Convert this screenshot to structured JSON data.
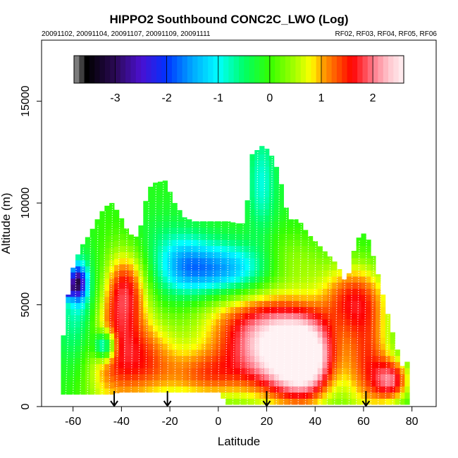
{
  "chart_data": {
    "type": "heatmap",
    "title": "HIPPO2 Southbound CONC2C_LWO (Log)",
    "subtitle_left": "20091102, 20091104, 20091107, 20091109, 20091111",
    "subtitle_right": "RF02, RF03, RF04, RF05, RF06",
    "xlabel": "Latitude",
    "ylabel": "Altitude (m)",
    "xlim": [
      -73,
      90
    ],
    "ylim": [
      0,
      18000
    ],
    "x_ticks": [
      -60,
      -40,
      -20,
      0,
      20,
      40,
      60,
      80
    ],
    "y_ticks": [
      0,
      5000,
      10000,
      15000
    ],
    "colorbar": {
      "range": [
        -3.8,
        2.6
      ],
      "ticks": [
        -3,
        -2,
        -1,
        0,
        1,
        2
      ],
      "stops": [
        {
          "v": -3.8,
          "c": "#9a9a9a"
        },
        {
          "v": -3.55,
          "c": "#000000"
        },
        {
          "v": -3.0,
          "c": "#2b0a55"
        },
        {
          "v": -2.5,
          "c": "#4b0fd0"
        },
        {
          "v": -2.0,
          "c": "#0033ff"
        },
        {
          "v": -1.5,
          "c": "#00a8ff"
        },
        {
          "v": -1.0,
          "c": "#00ffff"
        },
        {
          "v": -0.5,
          "c": "#00ff66"
        },
        {
          "v": 0.0,
          "c": "#33ff00"
        },
        {
          "v": 0.5,
          "c": "#aaff00"
        },
        {
          "v": 0.8,
          "c": "#ffff00"
        },
        {
          "v": 1.0,
          "c": "#ffaa00"
        },
        {
          "v": 1.3,
          "c": "#ff5500"
        },
        {
          "v": 1.6,
          "c": "#ff0000"
        },
        {
          "v": 2.0,
          "c": "#ff7a8a"
        },
        {
          "v": 2.3,
          "c": "#ffc4cc"
        },
        {
          "v": 2.6,
          "c": "#fff2f4"
        }
      ]
    },
    "flight_arrow_latitudes": [
      -43,
      -21,
      20,
      61
    ],
    "envelope": {
      "lat": [
        -65,
        -61,
        -57,
        -53,
        -50,
        -47,
        -44,
        -41,
        -37,
        -33,
        -29,
        -26,
        -22,
        -18,
        -14,
        -10,
        -5,
        0,
        4,
        8,
        11,
        14,
        18,
        21,
        25,
        29,
        33,
        37,
        41,
        45,
        49,
        53,
        57,
        61,
        65,
        69,
        73,
        76,
        78
      ],
      "bottom": [
        600,
        600,
        600,
        600,
        600,
        600,
        600,
        700,
        700,
        700,
        700,
        700,
        700,
        700,
        700,
        700,
        700,
        700,
        100,
        100,
        100,
        100,
        100,
        100,
        100,
        100,
        100,
        100,
        100,
        100,
        100,
        100,
        100,
        100,
        100,
        100,
        100,
        100,
        100
      ],
      "top": [
        2500,
        6500,
        7800,
        8500,
        9200,
        9800,
        10000,
        9500,
        8500,
        8300,
        10700,
        11000,
        11100,
        10000,
        9300,
        9100,
        9100,
        9100,
        9100,
        9000,
        9000,
        12400,
        12800,
        12600,
        11500,
        9200,
        9200,
        8500,
        8000,
        7500,
        7000,
        6000,
        8200,
        8600,
        7000,
        5000,
        3200,
        2000,
        2200
      ]
    },
    "field_features": [
      {
        "lat": -45,
        "alt": 3500,
        "value": 1.2,
        "sx": 9,
        "sy": 2800
      },
      {
        "lat": -38,
        "alt": 5800,
        "value": 1.1,
        "sx": 6,
        "sy": 1300
      },
      {
        "lat": -30,
        "alt": 2300,
        "value": 1.1,
        "sx": 10,
        "sy": 1500
      },
      {
        "lat": -28,
        "alt": 8400,
        "value": -0.3,
        "sx": 8,
        "sy": 900
      },
      {
        "lat": -57,
        "alt": 3900,
        "value": -0.9,
        "sx": 6,
        "sy": 1600
      },
      {
        "lat": -53,
        "alt": 6000,
        "value": -0.8,
        "sx": 8,
        "sy": 1500
      },
      {
        "lat": -58,
        "alt": 6100,
        "value": -2.6,
        "sx": 2.5,
        "sy": 600
      },
      {
        "lat": -63,
        "alt": 5800,
        "value": -3.2,
        "sx": 1.6,
        "sy": 300
      },
      {
        "lat": -47,
        "alt": 3000,
        "value": -2.1,
        "sx": 3,
        "sy": 500
      },
      {
        "lat": 2,
        "alt": 6700,
        "value": -1.7,
        "sx": 14,
        "sy": 900
      },
      {
        "lat": -15,
        "alt": 7100,
        "value": -1.0,
        "sx": 8,
        "sy": 1100
      },
      {
        "lat": 18,
        "alt": 11000,
        "value": -0.9,
        "sx": 4,
        "sy": 1700
      },
      {
        "lat": 8,
        "alt": 3800,
        "value": 1.1,
        "sx": 14,
        "sy": 1600
      },
      {
        "lat": -5,
        "alt": 1500,
        "value": 1.0,
        "sx": 12,
        "sy": 900
      },
      {
        "lat": 27,
        "alt": 2700,
        "value": 2.3,
        "sx": 12,
        "sy": 1700
      },
      {
        "lat": 37,
        "alt": 2300,
        "value": 1.8,
        "sx": 8,
        "sy": 1400
      },
      {
        "lat": 56,
        "alt": 5300,
        "value": 1.4,
        "sx": 10,
        "sy": 1300
      },
      {
        "lat": 62,
        "alt": 2000,
        "value": 1.3,
        "sx": 7,
        "sy": 1800
      },
      {
        "lat": 30,
        "alt": 7200,
        "value": 0.4,
        "sx": 10,
        "sy": 1000
      },
      {
        "lat": 72,
        "alt": 1300,
        "value": 1.5,
        "sx": 5,
        "sy": 700
      }
    ]
  }
}
